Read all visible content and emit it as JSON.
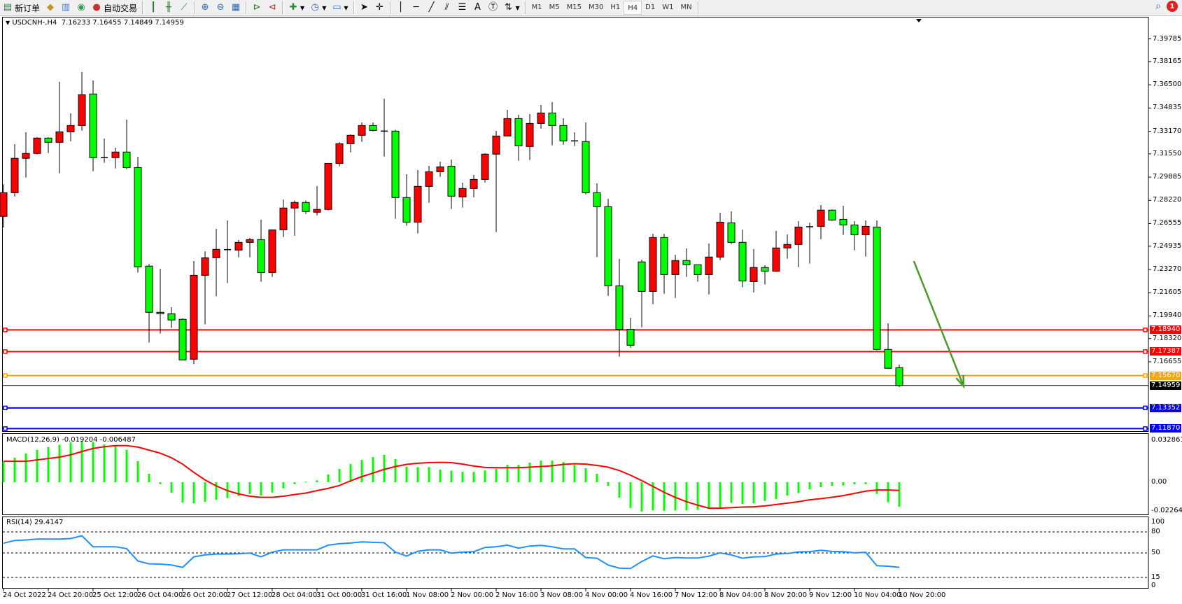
{
  "toolbar": {
    "new_order": "新订单",
    "auto_trading": "自动交易",
    "icons": [
      "new-order-icon",
      "gold-icon",
      "market-watch-icon",
      "signal-icon",
      "auto-trading-icon",
      "bar-chart-icon",
      "candlestick-icon",
      "line-chart-icon",
      "zoom-in-icon",
      "zoom-out-icon",
      "tile-windows-icon",
      "chart-shift-icon",
      "autoscroll-icon",
      "indicators-icon",
      "periods-icon",
      "templates-icon",
      "cursor-icon",
      "crosshair-icon",
      "vertical-line-icon",
      "horizontal-line-icon",
      "trendline-icon",
      "fibonacci-icon",
      "fibo-fan-icon",
      "text-icon",
      "text-label-icon",
      "arrows-icon"
    ],
    "text_tool": "A",
    "timeframes": [
      "M1",
      "M5",
      "M15",
      "M30",
      "H1",
      "H4",
      "D1",
      "W1",
      "MN"
    ],
    "active_timeframe": "H4",
    "notification_count": "1"
  },
  "chart": {
    "symbol": "USDCNH-,H4",
    "open": "7.16233",
    "high": "7.16455",
    "low": "7.14849",
    "close": "7.14959"
  },
  "chart_data": [
    {
      "type": "candlestick",
      "price_axis_ticks": [
        "7.39785",
        "7.38165",
        "7.36500",
        "7.34835",
        "7.33170",
        "7.31550",
        "7.29885",
        "7.28220",
        "7.26555",
        "7.24935",
        "7.23270",
        "7.21605",
        "7.19940",
        "7.18320",
        "7.16655"
      ],
      "x_tick_labels": [
        "24 Oct 2022",
        "24 Oct 20:00",
        "25 Oct 12:00",
        "26 Oct 04:00",
        "26 Oct 20:00",
        "27 Oct 12:00",
        "28 Oct 04:00",
        "31 Oct 00:00",
        "31 Oct 16:00",
        "1 Nov 08:00",
        "2 Nov 00:00",
        "2 Nov 16:00",
        "3 Nov 08:00",
        "4 Nov 00:00",
        "4 Nov 16:00",
        "7 Nov 12:00",
        "8 Nov 04:00",
        "8 Nov 20:00",
        "9 Nov 12:00",
        "10 Nov 04:00",
        "10 Nov 20:00"
      ],
      "x_tick_every_bars": 4,
      "colors": {
        "bull": "#ff0000",
        "bear": "#00ff00",
        "outline": "#000000"
      },
      "ohlc": [
        [
          7.2707,
          7.2937,
          7.2628,
          7.2877
        ],
        [
          7.2877,
          7.3224,
          7.285,
          7.3123
        ],
        [
          7.3123,
          7.331,
          7.2986,
          7.3158
        ],
        [
          7.3158,
          7.3275,
          7.3151,
          7.3268
        ],
        [
          7.3268,
          7.3275,
          7.3161,
          7.3238
        ],
        [
          7.3238,
          7.3671,
          7.3016,
          7.3313
        ],
        [
          7.3313,
          7.3445,
          7.3246,
          7.3358
        ],
        [
          7.3358,
          7.3741,
          7.3321,
          7.3579
        ],
        [
          7.3584,
          7.3681,
          7.3031,
          7.3128
        ],
        [
          7.3128,
          7.3265,
          7.3091,
          7.3128
        ],
        [
          7.3128,
          7.3199,
          7.3051,
          7.3168
        ],
        [
          7.3168,
          7.34,
          7.3046,
          7.3057
        ],
        [
          7.3057,
          7.3134,
          7.2305,
          7.2346
        ],
        [
          7.2351,
          7.2366,
          7.1804,
          7.202
        ],
        [
          7.202,
          7.2332,
          7.1868,
          7.201
        ],
        [
          7.201,
          7.2057,
          7.1908,
          7.1965
        ],
        [
          7.197,
          7.1976,
          7.1679,
          7.1679
        ],
        [
          7.1684,
          7.2387,
          7.1649,
          7.2285
        ],
        [
          7.2285,
          7.2457,
          7.1935,
          7.2411
        ],
        [
          7.2411,
          7.2618,
          7.2135,
          7.2471
        ],
        [
          7.2469,
          7.2678,
          7.223,
          7.2469
        ],
        [
          7.2466,
          7.2538,
          7.2414,
          7.2521
        ],
        [
          7.2521,
          7.2553,
          7.2414,
          7.2541
        ],
        [
          7.2541,
          7.2683,
          7.2239,
          7.2305
        ],
        [
          7.2305,
          7.2611,
          7.2274,
          7.2611
        ],
        [
          7.2611,
          7.2828,
          7.2559,
          7.2767
        ],
        [
          7.2767,
          7.282,
          7.2569,
          7.2807
        ],
        [
          7.2807,
          7.282,
          7.2725,
          7.2742
        ],
        [
          7.2737,
          7.2924,
          7.2715,
          7.2757
        ],
        [
          7.2757,
          7.3087,
          7.275,
          7.3087
        ],
        [
          7.3087,
          7.3238,
          7.3066,
          7.3228
        ],
        [
          7.3228,
          7.3295,
          7.3166,
          7.3288
        ],
        [
          7.3288,
          7.338,
          7.3241,
          7.3358
        ],
        [
          7.3358,
          7.338,
          7.3316,
          7.3323
        ],
        [
          7.3318,
          7.355,
          7.3136,
          7.3318
        ],
        [
          7.3318,
          7.3328,
          7.269,
          7.2842
        ],
        [
          7.2842,
          7.3009,
          7.264,
          7.2666
        ],
        [
          7.2666,
          7.3039,
          7.2585,
          7.2922
        ],
        [
          7.2922,
          7.3069,
          7.2805,
          7.3027
        ],
        [
          7.3027,
          7.3099,
          7.2991,
          7.3062
        ],
        [
          7.3067,
          7.3114,
          7.276,
          7.2852
        ],
        [
          7.2847,
          7.2949,
          7.277,
          7.2907
        ],
        [
          7.2907,
          7.3004,
          7.2845,
          7.2972
        ],
        [
          7.2972,
          7.3159,
          7.295,
          7.3153
        ],
        [
          7.3153,
          7.332,
          7.2595,
          7.3283
        ],
        [
          7.3283,
          7.347,
          7.3283,
          7.3408
        ],
        [
          7.3408,
          7.3435,
          7.3106,
          7.3213
        ],
        [
          7.3208,
          7.344,
          7.3111,
          7.3373
        ],
        [
          7.3373,
          7.3505,
          7.3336,
          7.3448
        ],
        [
          7.3448,
          7.3525,
          7.3216,
          7.3358
        ],
        [
          7.3358,
          7.341,
          7.3221,
          7.3248
        ],
        [
          7.3248,
          7.331,
          7.3211,
          7.3248
        ],
        [
          7.3243,
          7.338,
          7.2865,
          7.2877
        ],
        [
          7.2877,
          7.2944,
          7.2416,
          7.2777
        ],
        [
          7.2777,
          7.2833,
          7.2138,
          7.221
        ],
        [
          7.221,
          7.2402,
          7.1702,
          7.1898
        ],
        [
          7.1898,
          7.1981,
          7.1767,
          7.1784
        ],
        [
          7.2381,
          7.2397,
          7.1913,
          7.217
        ],
        [
          7.217,
          7.2583,
          7.2078,
          7.2556
        ],
        [
          7.2556,
          7.2583,
          7.2153,
          7.229
        ],
        [
          7.229,
          7.2432,
          7.2123,
          7.2391
        ],
        [
          7.2391,
          7.2478,
          7.2274,
          7.2361
        ],
        [
          7.2361,
          7.2361,
          7.2239,
          7.229
        ],
        [
          7.229,
          7.2513,
          7.2148,
          7.2416
        ],
        [
          7.2416,
          7.2733,
          7.2394,
          7.2666
        ],
        [
          7.2661,
          7.2743,
          7.2509,
          7.2521
        ],
        [
          7.2521,
          7.2613,
          7.2199,
          7.2245
        ],
        [
          7.224,
          7.2473,
          7.2163,
          7.2341
        ],
        [
          7.2341,
          7.2357,
          7.2219,
          7.2315
        ],
        [
          7.2315,
          7.2603,
          7.2309,
          7.2481
        ],
        [
          7.2481,
          7.2578,
          7.2404,
          7.2506
        ],
        [
          7.2506,
          7.2673,
          7.2344,
          7.2631
        ],
        [
          7.2633,
          7.2661,
          7.2369,
          7.2633
        ],
        [
          7.2636,
          7.2788,
          7.2544,
          7.2752
        ],
        [
          7.2752,
          7.2757,
          7.2675,
          7.2681
        ],
        [
          7.2686,
          7.2783,
          7.2574,
          7.2646
        ],
        [
          7.2646,
          7.2673,
          7.2464,
          7.2576
        ],
        [
          7.2576,
          7.2678,
          7.2419,
          7.2636
        ],
        [
          7.2631,
          7.2678,
          7.1747,
          7.1754
        ],
        [
          7.1754,
          7.1941,
          7.1619,
          7.1619
        ],
        [
          7.16233,
          7.16455,
          7.14849,
          7.14959
        ]
      ],
      "levels": [
        {
          "price": 7.1894,
          "label": "7.18940",
          "color": "#ff0000"
        },
        {
          "price": 7.17387,
          "label": "7.17387",
          "color": "#ff0000"
        },
        {
          "price": 7.1567,
          "label": "7.15670",
          "color": "#ffa500"
        },
        {
          "price": 7.13352,
          "label": "7.13352",
          "color": "#0000ff"
        },
        {
          "price": 7.1187,
          "label": "7.11870",
          "color": "#0000ff"
        }
      ],
      "current_price": {
        "price": 7.14959,
        "label": "7.14959",
        "color": "#000000"
      },
      "arrow": {
        "from": {
          "bar": 81.3,
          "price": 7.2387
        },
        "to": {
          "bar": 85.75,
          "price": 7.149
        },
        "color": "#4c9a2a"
      }
    },
    {
      "type": "bar+line",
      "label": "MACD(12,26,9) -0.019204 -0.006487",
      "axis_ticks": [
        "0.032861",
        "0.00",
        "-0.022641"
      ],
      "histogram_color": "#00ff00",
      "signal_color": "#ff0000",
      "histogram": [
        0.016,
        0.0193,
        0.0226,
        0.0254,
        0.0276,
        0.0294,
        0.0312,
        0.0325,
        0.0316,
        0.0298,
        0.0283,
        0.0254,
        0.0165,
        0.0066,
        -0.0015,
        -0.0083,
        -0.0158,
        -0.0165,
        -0.0153,
        -0.0138,
        -0.0125,
        -0.0108,
        -0.0092,
        -0.0103,
        -0.0081,
        -0.0048,
        -0.0015,
        0.0004,
        0.0015,
        0.0061,
        0.0105,
        0.0142,
        0.0175,
        0.0197,
        0.0215,
        0.0182,
        0.0123,
        0.0119,
        0.0119,
        0.0099,
        0.009,
        0.0081,
        0.0081,
        0.0092,
        0.0105,
        0.0136,
        0.0136,
        0.0154,
        0.0169,
        0.0169,
        0.0158,
        0.0136,
        0.011,
        0.0066,
        -0.0028,
        -0.0121,
        -0.0202,
        -0.023,
        -0.0221,
        -0.0224,
        -0.0222,
        -0.0221,
        -0.0217,
        -0.021,
        -0.0204,
        -0.0162,
        -0.0171,
        -0.0165,
        -0.0147,
        -0.0132,
        -0.0105,
        -0.0085,
        -0.0055,
        -0.0039,
        -0.0028,
        -0.0026,
        -0.0017,
        -0.0015,
        -0.0092,
        -0.0156,
        -0.019204
      ],
      "signal": [
        0.0164,
        0.0164,
        0.0164,
        0.0175,
        0.0186,
        0.0197,
        0.0215,
        0.0241,
        0.0265,
        0.0279,
        0.0287,
        0.0287,
        0.0276,
        0.0252,
        0.0228,
        0.0192,
        0.0142,
        0.0077,
        0.0018,
        -0.0029,
        -0.0066,
        -0.0092,
        -0.011,
        -0.0119,
        -0.0119,
        -0.011,
        -0.0097,
        -0.0085,
        -0.0066,
        -0.0048,
        -0.0026,
        0.0011,
        0.0044,
        0.0072,
        0.0101,
        0.0123,
        0.014,
        0.0149,
        0.0154,
        0.0156,
        0.0154,
        0.0142,
        0.0127,
        0.0116,
        0.0114,
        0.0114,
        0.0114,
        0.0118,
        0.0123,
        0.0129,
        0.014,
        0.0145,
        0.0142,
        0.0132,
        0.0118,
        0.0092,
        0.0055,
        0.0013,
        -0.0033,
        -0.0079,
        -0.0119,
        -0.0153,
        -0.018,
        -0.0204,
        -0.0204,
        -0.02,
        -0.0195,
        -0.0193,
        -0.0186,
        -0.0175,
        -0.0164,
        -0.0153,
        -0.0138,
        -0.0129,
        -0.0118,
        -0.0105,
        -0.0088,
        -0.007,
        -0.0061,
        -0.0061,
        -0.006487
      ]
    },
    {
      "type": "line",
      "label": "RSI(14) 29.4147",
      "axis_ticks": [
        "100",
        "80",
        "50",
        "15",
        "0"
      ],
      "levels": [
        80,
        50,
        15
      ],
      "ylim": [
        0,
        100
      ],
      "color": "#1e90ff",
      "values": [
        63.8,
        67.8,
        68.5,
        69.8,
        69.8,
        69.8,
        70.5,
        74.5,
        58.8,
        58.8,
        58.8,
        56.1,
        38.4,
        34.4,
        34.0,
        32.7,
        29.3,
        44.4,
        47.1,
        48.4,
        48.4,
        48.7,
        49.7,
        44.4,
        51.1,
        54.4,
        54.4,
        54.4,
        54.4,
        61.1,
        63.1,
        64.1,
        65.8,
        65.1,
        64.5,
        51.1,
        45.4,
        52.4,
        54.4,
        54.4,
        49.7,
        51.1,
        51.8,
        57.8,
        58.8,
        61.1,
        56.8,
        59.8,
        60.8,
        58.8,
        55.8,
        55.8,
        43.4,
        42.4,
        32.7,
        28.3,
        27.7,
        37.7,
        45.7,
        41.7,
        43.4,
        42.7,
        42.7,
        45.4,
        50.1,
        47.1,
        42.4,
        44.4,
        44.7,
        48.4,
        49.1,
        51.4,
        51.8,
        53.8,
        52.1,
        51.8,
        50.1,
        50.8,
        31.7,
        31.0,
        29.4147
      ]
    }
  ]
}
